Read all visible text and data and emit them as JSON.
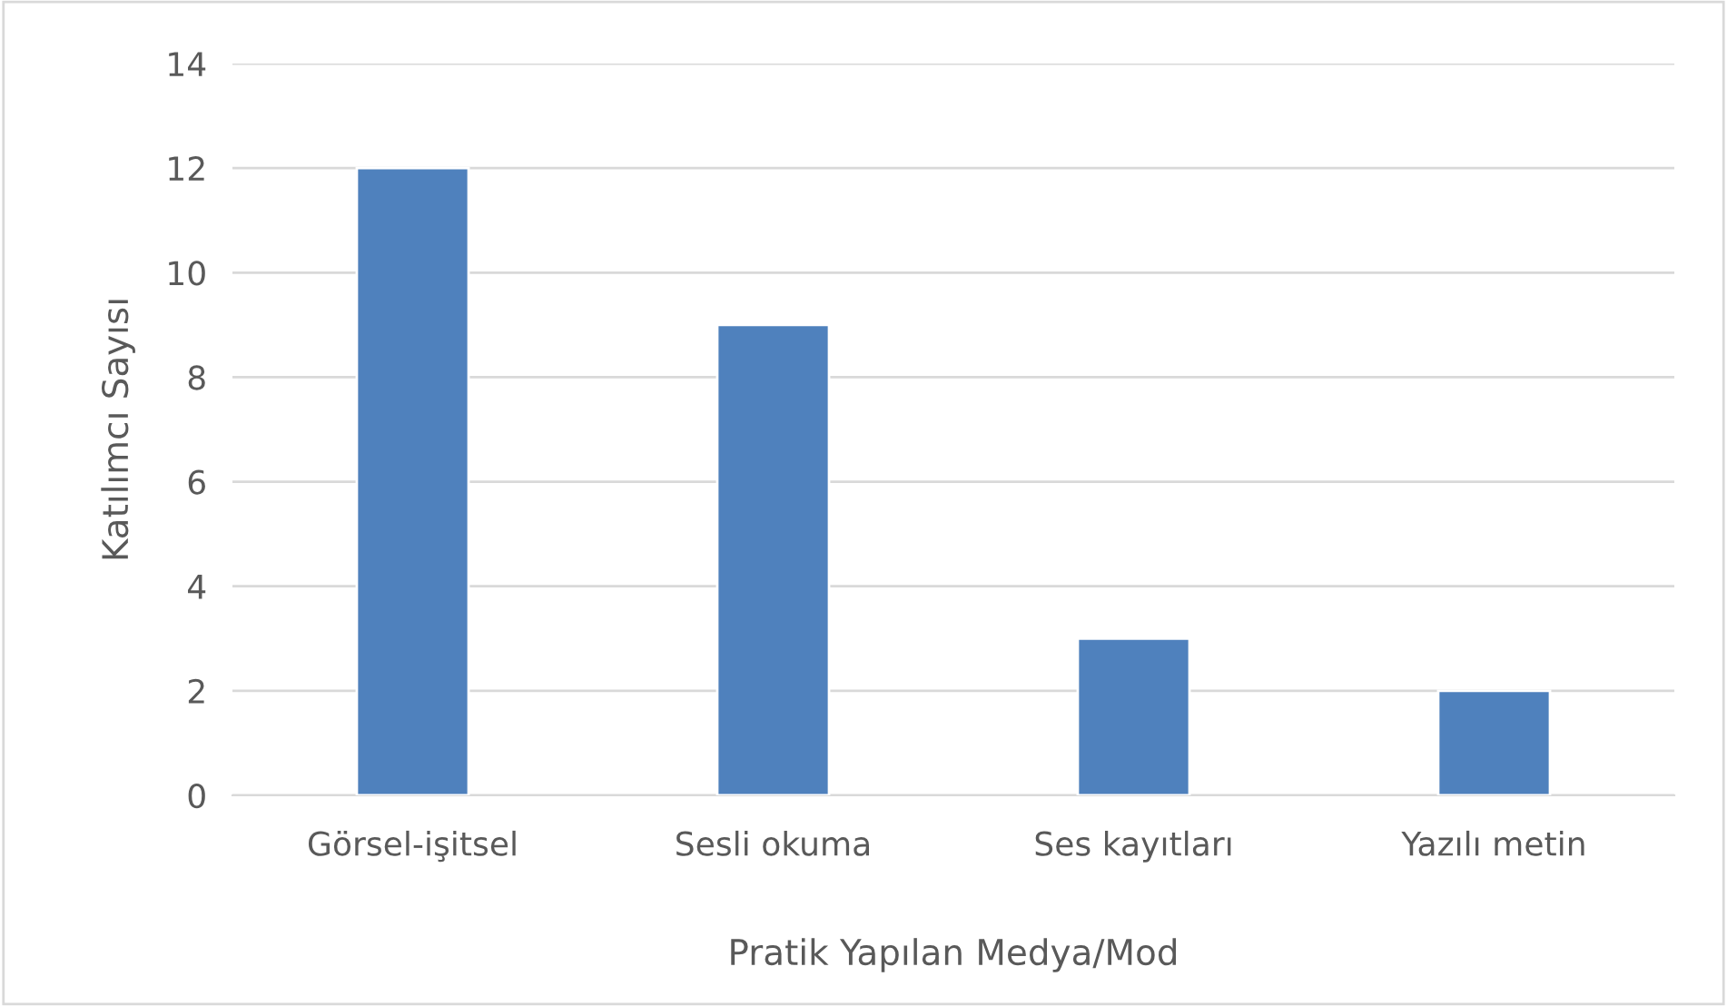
{
  "chart_data": {
    "type": "bar",
    "xlabel": "Pratik Yapılan Medya/Mod",
    "ylabel": "Katılımcı Sayısı",
    "categories": [
      "Görsel-işitsel",
      "Sesli okuma",
      "Ses kayıtları",
      "Yazılı metin"
    ],
    "values": [
      12,
      9,
      3,
      2
    ],
    "color": "#4f81bd",
    "ylim": [
      0,
      14
    ],
    "yticks": [
      0,
      2,
      4,
      6,
      8,
      10,
      12,
      14
    ],
    "grid": "y"
  }
}
